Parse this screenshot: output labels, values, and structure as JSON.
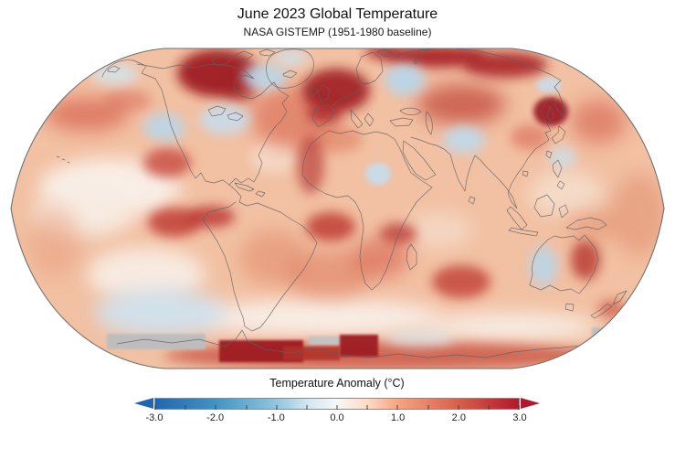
{
  "header": {
    "title": "June 2023 Global Temperature",
    "subtitle": "NASA GISTEMP (1951-1980 baseline)"
  },
  "colorbar": {
    "label": "Temperature Anomaly (°C)",
    "tick_labels": [
      "-3.0",
      "-2.0",
      "-1.0",
      "0.0",
      "1.0",
      "2.0",
      "3.0"
    ],
    "range": [
      -3,
      3
    ],
    "minor_tick_step": 0.5,
    "left_arrow_color": "#2166ac",
    "right_arrow_color": "#b2182b",
    "gradient_stops": [
      {
        "value": -3.0,
        "color": "#2166ac"
      },
      {
        "value": -2.0,
        "color": "#4393c3"
      },
      {
        "value": -1.0,
        "color": "#92c5de"
      },
      {
        "value": -0.5,
        "color": "#d1e5f0"
      },
      {
        "value": 0.0,
        "color": "#f7f7f7"
      },
      {
        "value": 0.5,
        "color": "#fddbc7"
      },
      {
        "value": 1.0,
        "color": "#f4a582"
      },
      {
        "value": 2.0,
        "color": "#d6604d"
      },
      {
        "value": 3.0,
        "color": "#b2182b"
      }
    ]
  },
  "chart_data": {
    "type": "heatmap",
    "title": "June 2023 Global Temperature",
    "subtitle": "NASA GISTEMP (1951-1980 baseline)",
    "projection": "Robinson world map",
    "variable": "Temperature Anomaly (°C)",
    "baseline_period": "1951-1980",
    "colormap": "blue-white-red diverging (RdBu reversed)",
    "value_range": [
      -3,
      3
    ],
    "legend_position": "bottom",
    "notes": "Gray blocky patches near Antarctica indicate missing data; most of the globe shows positive (warm) anomalies",
    "regional_anomalies_estimated_degC": [
      {
        "region": "Northern Canada / Hudson Bay",
        "value": 3.0
      },
      {
        "region": "Southwestern United States",
        "value": -1.0
      },
      {
        "region": "Northeastern United States / Great Lakes",
        "value": -0.7
      },
      {
        "region": "Southern Greenland / Labrador Sea",
        "value": -1.0
      },
      {
        "region": "Alaska / Bering Sea",
        "value": -0.5
      },
      {
        "region": "Mexico",
        "value": 2.0
      },
      {
        "region": "Northeast Pacific",
        "value": 1.5
      },
      {
        "region": "Equatorial East Pacific off Peru",
        "value": 2.0
      },
      {
        "region": "Northern South America",
        "value": 2.5
      },
      {
        "region": "Southern Ocean south of South America",
        "value": -0.5
      },
      {
        "region": "North Atlantic",
        "value": 1.5
      },
      {
        "region": "Equatorial Atlantic",
        "value": 2.0
      },
      {
        "region": "Western Europe",
        "value": 2.5
      },
      {
        "region": "Northwest Russia",
        "value": -1.0
      },
      {
        "region": "Siberian Arctic coast",
        "value": 3.0
      },
      {
        "region": "Central Asia",
        "value": 2.0
      },
      {
        "region": "North-central Africa (Chad/Sudan)",
        "value": -0.7
      },
      {
        "region": "Southern Africa",
        "value": 2.0
      },
      {
        "region": "Southwest Indian Ocean",
        "value": 2.0
      },
      {
        "region": "Northern India",
        "value": -0.8
      },
      {
        "region": "Sea of Okhotsk",
        "value": 3.0
      },
      {
        "region": "Pacific east of Kamchatka",
        "value": -0.7
      },
      {
        "region": "Philippine Sea",
        "value": -0.5
      },
      {
        "region": "Western Australia",
        "value": -1.0
      },
      {
        "region": "Eastern Australia",
        "value": 2.0
      },
      {
        "region": "New Zealand",
        "value": 1.5
      },
      {
        "region": "West Antarctica sectors",
        "value": 3.0
      },
      {
        "region": "Antarctic coastal sectors (gray)",
        "value": null
      },
      {
        "region": "Global ocean backdrop",
        "value": 0.7
      }
    ]
  }
}
